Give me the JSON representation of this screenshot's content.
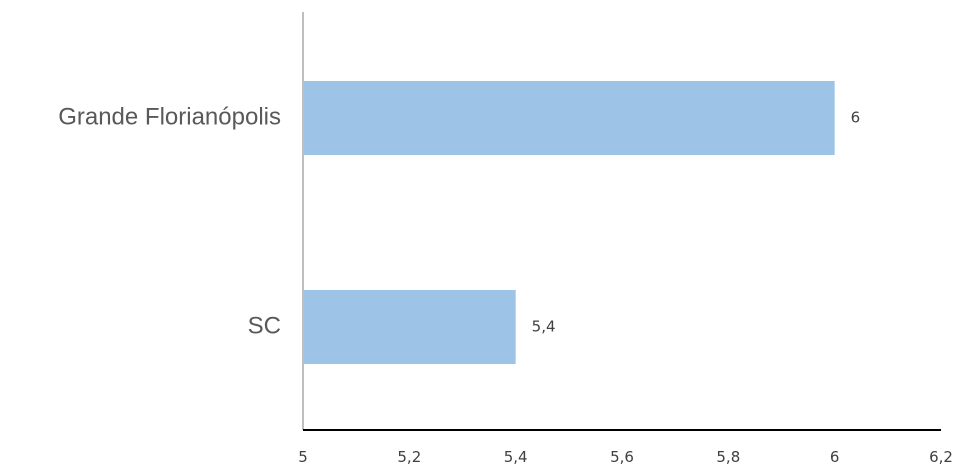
{
  "chart_data": {
    "type": "bar",
    "orientation": "horizontal",
    "categories": [
      "Grande Florianópolis",
      "SC"
    ],
    "values": [
      6,
      5.4
    ],
    "value_labels": [
      "6",
      "5,4"
    ],
    "title": "",
    "xlabel": "",
    "ylabel": "",
    "xlim": [
      5,
      6.2
    ],
    "x_ticks": [
      5,
      5.2,
      5.4,
      5.6,
      5.8,
      6,
      6.2
    ],
    "x_tick_labels": [
      "5",
      "5,2",
      "5,4",
      "5,6",
      "5,8",
      "6",
      "6,2"
    ],
    "grid": false,
    "legend": "none",
    "colors": {
      "bar": "#9DC3E6",
      "value_axis": "#000000",
      "category_axis": "#BFBFBF"
    }
  }
}
